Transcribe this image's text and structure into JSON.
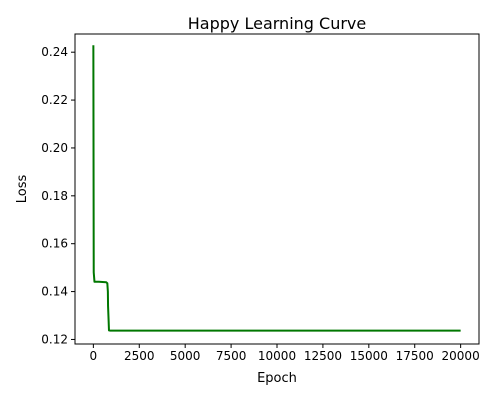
{
  "chart_data": {
    "type": "line",
    "title": "Happy Learning Curve",
    "xlabel": "Epoch",
    "ylabel": "Loss",
    "xlim": [
      -1000,
      21000
    ],
    "ylim": [
      0.1181,
      0.2476
    ],
    "xticks": [
      0,
      2500,
      5000,
      7500,
      10000,
      12500,
      15000,
      17500,
      20000
    ],
    "yticks": [
      0.12,
      0.14,
      0.16,
      0.18,
      0.2,
      0.22,
      0.24
    ],
    "xtick_labels": [
      "0",
      "2500",
      "5000",
      "7500",
      "10000",
      "12500",
      "15000",
      "17500",
      "20000"
    ],
    "ytick_labels": [
      "0.12",
      "0.14",
      "0.16",
      "0.18",
      "0.20",
      "0.22",
      "0.24"
    ],
    "grid": false,
    "legend": "none",
    "series": [
      {
        "color": "#007700",
        "x": [
          0,
          20,
          60,
          150,
          300,
          500,
          700,
          760,
          790,
          800,
          830,
          850,
          900,
          1500,
          5000,
          10000,
          15000,
          20000
        ],
        "y": [
          0.2429,
          0.148,
          0.1441,
          0.1441,
          0.1441,
          0.144,
          0.1439,
          0.1435,
          0.14,
          0.134,
          0.128,
          0.1238,
          0.1237,
          0.1237,
          0.1237,
          0.1237,
          0.1237,
          0.1237
        ]
      }
    ]
  }
}
